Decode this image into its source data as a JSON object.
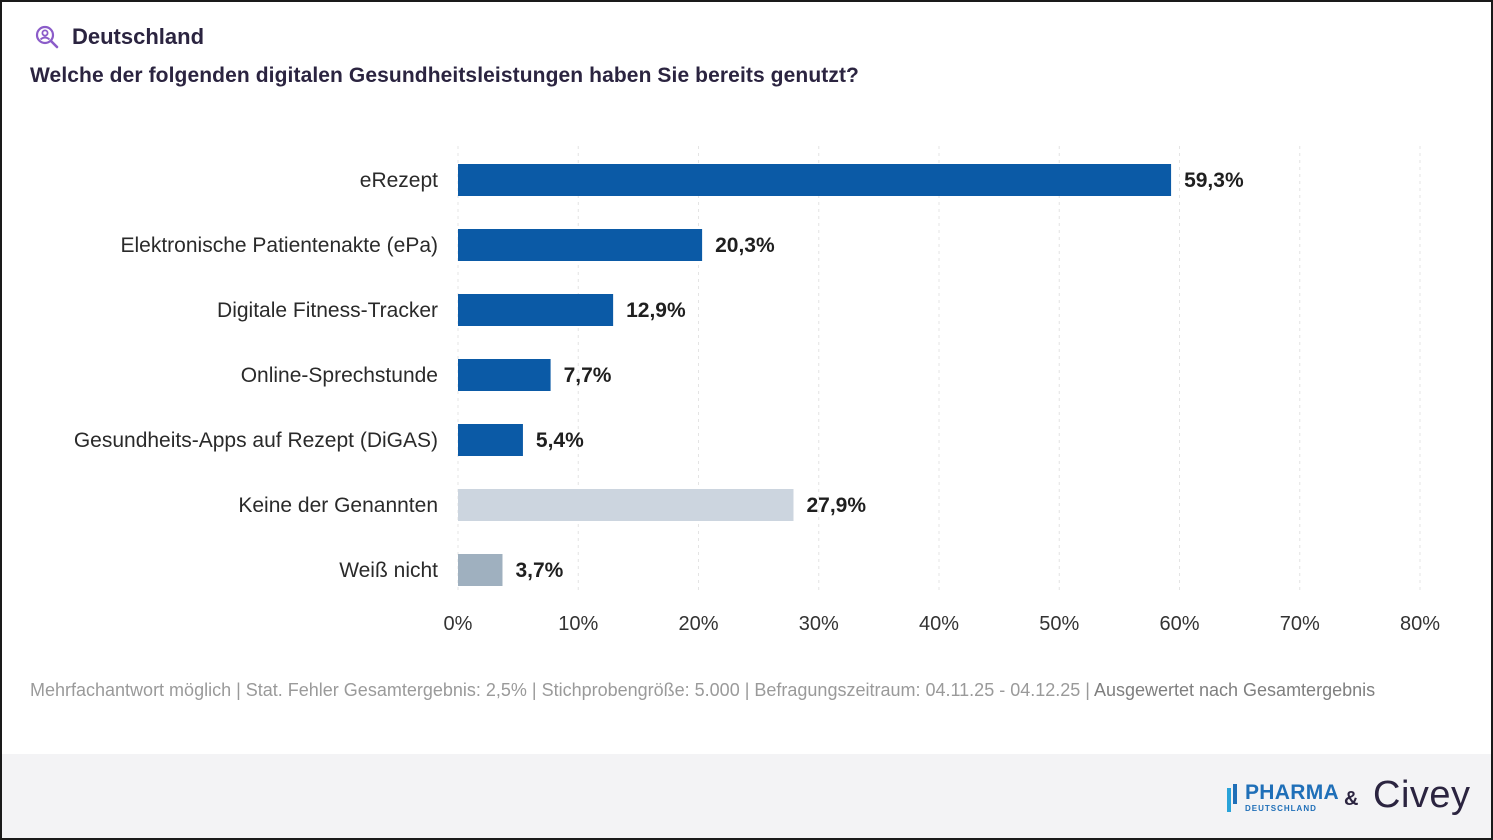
{
  "header": {
    "region": "Deutschland",
    "region_icon": "search-person-icon",
    "question": "Welche der folgenden digitalen Gesundheitsleistungen haben Sie bereits genutzt?"
  },
  "chart_data": {
    "type": "bar",
    "orientation": "horizontal",
    "categories": [
      "eRezept",
      "Elektronische Patientenakte (ePa)",
      "Digitale Fitness-Tracker",
      "Online-Sprechstunde",
      "Gesundheits-Apps auf Rezept (DiGAS)",
      "Keine der Genannten",
      "Weiß nicht"
    ],
    "values": [
      59.3,
      20.3,
      12.9,
      7.7,
      5.4,
      27.9,
      3.7
    ],
    "value_labels": [
      "59,3%",
      "20,3%",
      "12,9%",
      "7,7%",
      "5,4%",
      "27,9%",
      "3,7%"
    ],
    "colors": [
      "#0b5aa6",
      "#0b5aa6",
      "#0b5aa6",
      "#0b5aa6",
      "#0b5aa6",
      "#ccd5df",
      "#9fb0bf"
    ],
    "xlim": [
      0,
      80
    ],
    "xticks": [
      "0%",
      "10%",
      "20%",
      "30%",
      "40%",
      "50%",
      "60%",
      "70%",
      "80%"
    ],
    "grid": true,
    "legend": "none"
  },
  "footnote": {
    "text": "Mehrfachantwort möglich | Stat. Fehler Gesamtergebnis: 2,5% | Stichprobengröße: 5.000 | Befragungszeitraum: 04.11.25 - 04.12.25 | ",
    "evaluated": "Ausgewertet nach Gesamtergebnis"
  },
  "footer": {
    "pharma_main": "PHARMA",
    "pharma_sub": "DEUTSCHLAND",
    "ampersand": "&",
    "civey": "Civey"
  },
  "colors": {
    "bar_primary": "#0b5aa6",
    "bar_none": "#ccd5df",
    "bar_unknown": "#9fb0bf",
    "text_dark": "#2b2440",
    "accent_purple": "#8b5cc9",
    "pharma_blue": "#1f6fb8"
  }
}
